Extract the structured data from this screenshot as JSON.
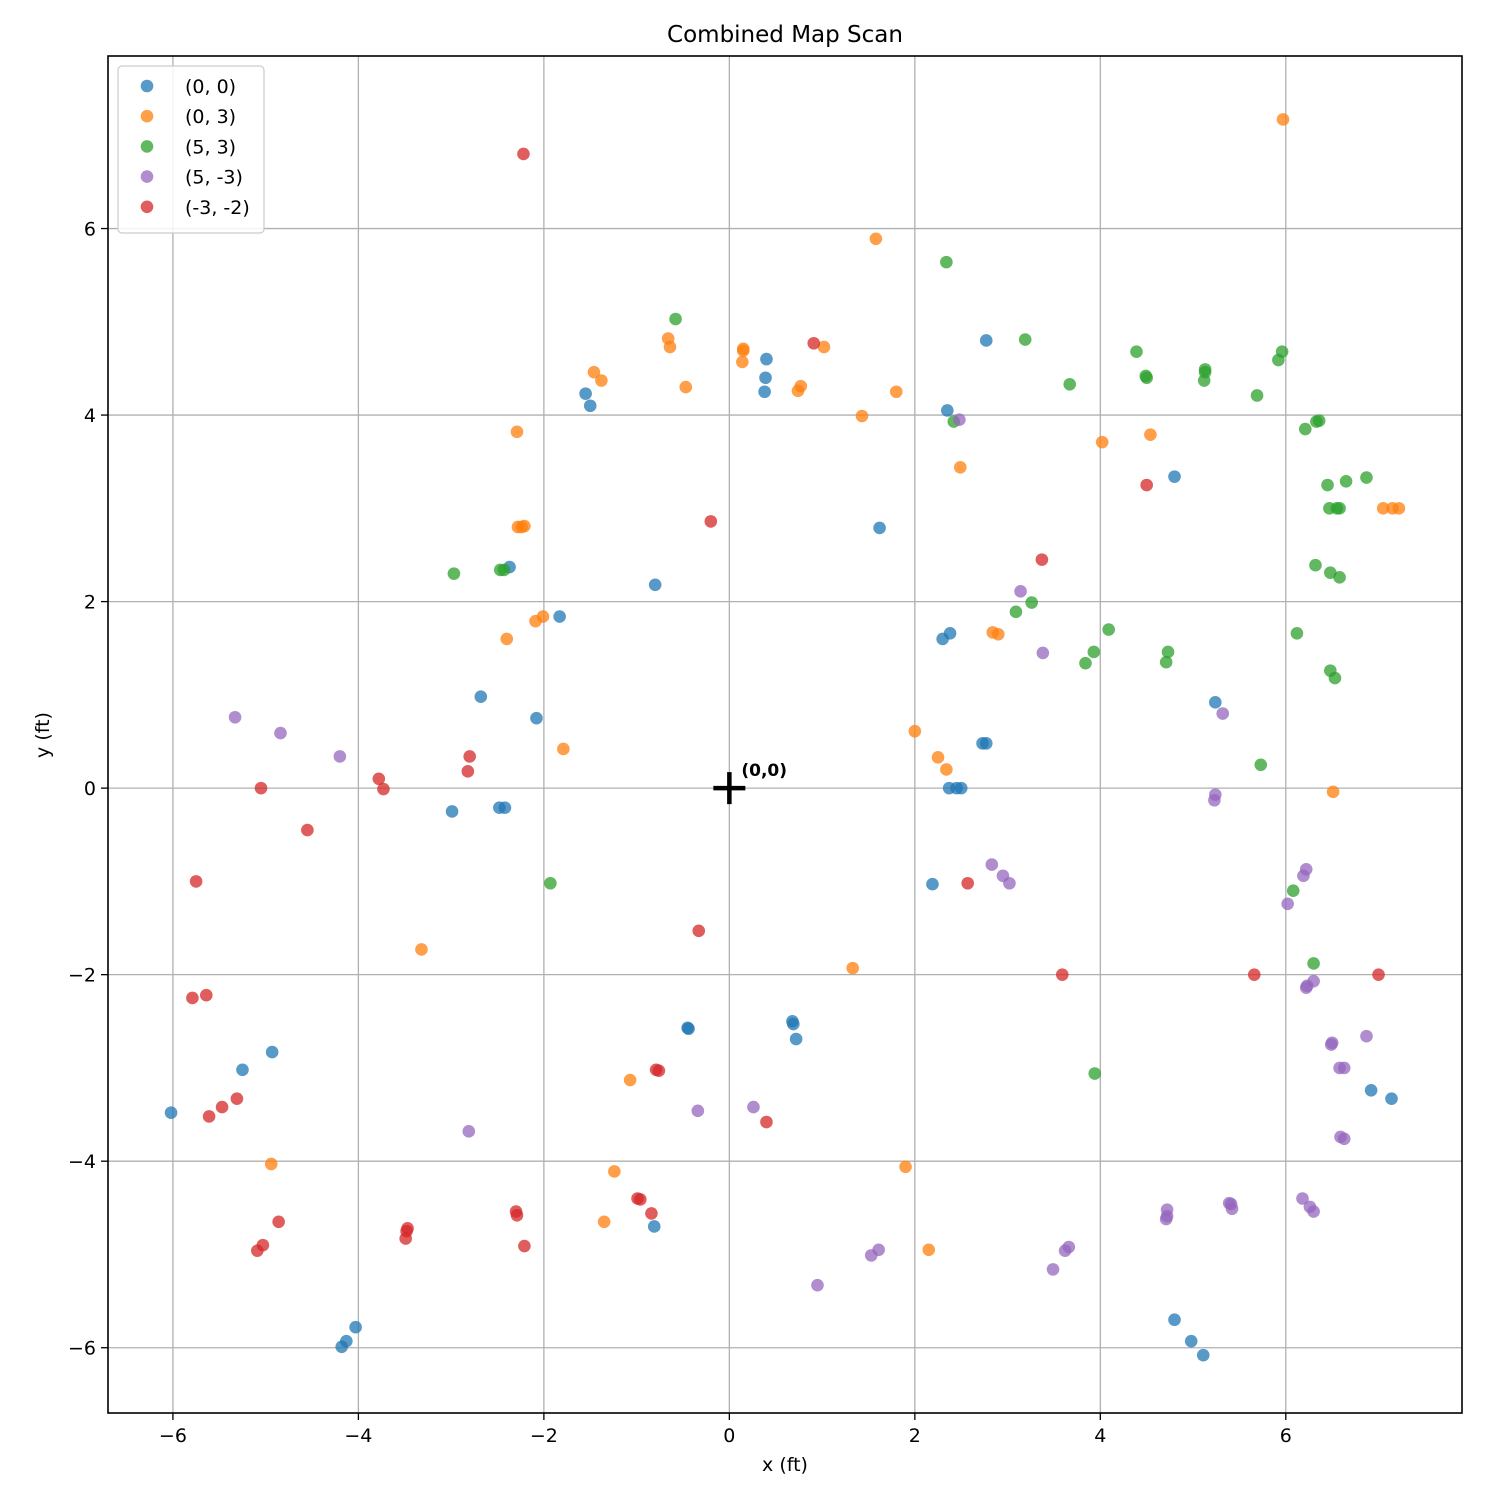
{
  "chart_data": {
    "type": "scatter",
    "title": "Combined Map Scan",
    "xlabel": "x (ft)",
    "ylabel": "y (ft)",
    "xlim": [
      -6.7,
      7.9
    ],
    "ylim": [
      -6.7,
      7.85
    ],
    "xticks": [
      -6,
      -4,
      -2,
      0,
      2,
      4,
      6
    ],
    "yticks": [
      -6,
      -4,
      -2,
      0,
      2,
      4,
      6
    ],
    "xtick_labels": [
      "−6",
      "−4",
      "−2",
      "0",
      "2",
      "4",
      "6"
    ],
    "ytick_labels": [
      "−6",
      "−4",
      "−2",
      "0",
      "2",
      "4",
      "6"
    ],
    "grid": true,
    "legend_position": "upper-left",
    "origin_marker": {
      "x": 0,
      "y": 0,
      "label": "(0,0)"
    },
    "series": [
      {
        "name": "(0, 0)",
        "color": "#1f77b4",
        "points": [
          [
            -1.55,
            4.23
          ],
          [
            -1.5,
            4.1
          ],
          [
            0.4,
            4.6
          ],
          [
            0.39,
            4.4
          ],
          [
            0.38,
            4.25
          ],
          [
            2.35,
            4.05
          ],
          [
            2.77,
            4.8
          ],
          [
            4.8,
            3.34
          ],
          [
            1.62,
            2.79
          ],
          [
            -0.8,
            2.18
          ],
          [
            -2.37,
            2.37
          ],
          [
            -1.83,
            1.84
          ],
          [
            -2.68,
            0.98
          ],
          [
            -2.08,
            0.75
          ],
          [
            2.38,
            1.66
          ],
          [
            2.3,
            1.6
          ],
          [
            2.73,
            0.48
          ],
          [
            2.77,
            0.48
          ],
          [
            5.24,
            0.92
          ],
          [
            -2.99,
            -0.25
          ],
          [
            -2.48,
            -0.21
          ],
          [
            -2.42,
            -0.21
          ],
          [
            2.37,
            0.0
          ],
          [
            2.45,
            0.0
          ],
          [
            2.5,
            0.0
          ],
          [
            2.19,
            -1.03
          ],
          [
            -0.45,
            -2.57
          ],
          [
            -0.44,
            -2.58
          ],
          [
            0.68,
            -2.5
          ],
          [
            0.69,
            -2.53
          ],
          [
            0.72,
            -2.69
          ],
          [
            -4.93,
            -2.83
          ],
          [
            -5.25,
            -3.02
          ],
          [
            -6.02,
            -3.48
          ],
          [
            6.92,
            -3.24
          ],
          [
            7.14,
            -3.33
          ],
          [
            -0.81,
            -4.7
          ],
          [
            -4.03,
            -5.78
          ],
          [
            -4.13,
            -5.93
          ],
          [
            -4.18,
            -5.99
          ],
          [
            4.8,
            -5.7
          ],
          [
            4.98,
            -5.93
          ],
          [
            5.11,
            -6.08
          ]
        ]
      },
      {
        "name": "(0, 3)",
        "color": "#ff7f0e",
        "points": [
          [
            5.97,
            7.17
          ],
          [
            1.58,
            5.89
          ],
          [
            -0.66,
            4.82
          ],
          [
            -0.64,
            4.73
          ],
          [
            0.15,
            4.71
          ],
          [
            0.15,
            4.69
          ],
          [
            0.14,
            4.57
          ],
          [
            1.02,
            4.73
          ],
          [
            -1.46,
            4.46
          ],
          [
            -1.38,
            4.37
          ],
          [
            -0.47,
            4.3
          ],
          [
            0.77,
            4.31
          ],
          [
            0.74,
            4.26
          ],
          [
            1.8,
            4.25
          ],
          [
            1.43,
            3.99
          ],
          [
            4.02,
            3.71
          ],
          [
            4.54,
            3.79
          ],
          [
            2.49,
            3.44
          ],
          [
            -2.29,
            3.82
          ],
          [
            -2.28,
            2.8
          ],
          [
            -2.24,
            2.8
          ],
          [
            -2.21,
            2.81
          ],
          [
            7.05,
            3.0
          ],
          [
            7.15,
            3.0
          ],
          [
            7.22,
            3.0
          ],
          [
            -2.01,
            1.84
          ],
          [
            -2.09,
            1.79
          ],
          [
            -2.4,
            1.6
          ],
          [
            2.84,
            1.67
          ],
          [
            2.9,
            1.65
          ],
          [
            -1.79,
            0.42
          ],
          [
            2.0,
            0.61
          ],
          [
            2.25,
            0.33
          ],
          [
            2.34,
            0.2
          ],
          [
            6.51,
            -0.04
          ],
          [
            -3.32,
            -1.73
          ],
          [
            1.33,
            -1.93
          ],
          [
            -1.07,
            -3.13
          ],
          [
            1.9,
            -4.06
          ],
          [
            -4.94,
            -4.03
          ],
          [
            -1.24,
            -4.11
          ],
          [
            -1.35,
            -4.65
          ],
          [
            2.15,
            -4.95
          ]
        ]
      },
      {
        "name": "(5, 3)",
        "color": "#2ca02c",
        "points": [
          [
            2.34,
            5.64
          ],
          [
            -0.58,
            5.03
          ],
          [
            3.19,
            4.81
          ],
          [
            4.39,
            4.68
          ],
          [
            5.96,
            4.68
          ],
          [
            5.92,
            4.59
          ],
          [
            4.49,
            4.42
          ],
          [
            4.5,
            4.4
          ],
          [
            5.13,
            4.49
          ],
          [
            5.13,
            4.46
          ],
          [
            5.12,
            4.37
          ],
          [
            3.67,
            4.33
          ],
          [
            5.69,
            4.21
          ],
          [
            6.33,
            3.93
          ],
          [
            6.36,
            3.94
          ],
          [
            6.21,
            3.85
          ],
          [
            2.42,
            3.93
          ],
          [
            6.87,
            3.33
          ],
          [
            6.65,
            3.29
          ],
          [
            6.45,
            3.25
          ],
          [
            6.47,
            3.0
          ],
          [
            6.55,
            3.0
          ],
          [
            6.58,
            3.0
          ],
          [
            -2.97,
            2.3
          ],
          [
            -2.47,
            2.34
          ],
          [
            -2.43,
            2.34
          ],
          [
            6.32,
            2.39
          ],
          [
            6.48,
            2.31
          ],
          [
            6.58,
            2.26
          ],
          [
            3.26,
            1.99
          ],
          [
            3.09,
            1.89
          ],
          [
            4.09,
            1.7
          ],
          [
            6.12,
            1.66
          ],
          [
            4.73,
            1.46
          ],
          [
            3.93,
            1.46
          ],
          [
            3.84,
            1.34
          ],
          [
            4.71,
            1.35
          ],
          [
            6.48,
            1.26
          ],
          [
            6.53,
            1.18
          ],
          [
            5.73,
            0.25
          ],
          [
            -1.93,
            -1.02
          ],
          [
            6.08,
            -1.1
          ],
          [
            6.3,
            -1.88
          ],
          [
            3.94,
            -3.06
          ]
        ]
      },
      {
        "name": "(5, -3)",
        "color": "#9467bd",
        "points": [
          [
            2.48,
            3.95
          ],
          [
            3.14,
            2.11
          ],
          [
            3.38,
            1.45
          ],
          [
            -5.33,
            0.76
          ],
          [
            -4.84,
            0.59
          ],
          [
            -4.2,
            0.34
          ],
          [
            5.32,
            0.8
          ],
          [
            5.24,
            -0.07
          ],
          [
            5.23,
            -0.13
          ],
          [
            2.83,
            -0.82
          ],
          [
            2.95,
            -0.94
          ],
          [
            3.02,
            -1.02
          ],
          [
            6.22,
            -0.87
          ],
          [
            6.19,
            -0.94
          ],
          [
            6.02,
            -1.24
          ],
          [
            6.3,
            -2.07
          ],
          [
            6.23,
            -2.12
          ],
          [
            6.22,
            -2.14
          ],
          [
            6.87,
            -2.66
          ],
          [
            6.5,
            -2.73
          ],
          [
            6.49,
            -2.75
          ],
          [
            6.58,
            -3.0
          ],
          [
            6.63,
            -3.0
          ],
          [
            6.59,
            -3.74
          ],
          [
            6.63,
            -3.76
          ],
          [
            -0.34,
            -3.46
          ],
          [
            0.26,
            -3.42
          ],
          [
            -2.81,
            -3.68
          ],
          [
            4.72,
            -4.52
          ],
          [
            4.72,
            -4.59
          ],
          [
            4.71,
            -4.62
          ],
          [
            5.41,
            -4.46
          ],
          [
            5.42,
            -4.51
          ],
          [
            6.18,
            -4.4
          ],
          [
            6.26,
            -4.49
          ],
          [
            6.3,
            -4.54
          ],
          [
            5.39,
            -4.45
          ],
          [
            3.66,
            -4.92
          ],
          [
            3.62,
            -4.96
          ],
          [
            1.61,
            -4.95
          ],
          [
            1.53,
            -5.01
          ],
          [
            3.49,
            -5.16
          ],
          [
            0.95,
            -5.33
          ]
        ]
      },
      {
        "name": "(-3, -2)",
        "color": "#d62728",
        "points": [
          [
            -2.22,
            6.8
          ],
          [
            0.91,
            4.77
          ],
          [
            -0.2,
            2.86
          ],
          [
            4.5,
            3.25
          ],
          [
            3.37,
            2.45
          ],
          [
            -2.8,
            0.34
          ],
          [
            -2.82,
            0.18
          ],
          [
            -3.78,
            0.1
          ],
          [
            -3.73,
            -0.01
          ],
          [
            -5.05,
            0.0
          ],
          [
            -4.55,
            -0.45
          ],
          [
            -5.75,
            -1.0
          ],
          [
            -0.33,
            -1.53
          ],
          [
            2.57,
            -1.02
          ],
          [
            3.59,
            -2.0
          ],
          [
            5.66,
            -2.0
          ],
          [
            7.0,
            -2.0
          ],
          [
            -5.79,
            -2.25
          ],
          [
            -5.64,
            -2.22
          ],
          [
            -0.79,
            -3.02
          ],
          [
            -0.76,
            -3.03
          ],
          [
            -5.31,
            -3.33
          ],
          [
            -5.47,
            -3.42
          ],
          [
            -5.61,
            -3.52
          ],
          [
            0.4,
            -3.58
          ],
          [
            -0.99,
            -4.4
          ],
          [
            -0.96,
            -4.41
          ],
          [
            -0.84,
            -4.56
          ],
          [
            -2.3,
            -4.54
          ],
          [
            -2.29,
            -4.58
          ],
          [
            -3.47,
            -4.72
          ],
          [
            -3.48,
            -4.75
          ],
          [
            -3.49,
            -4.83
          ],
          [
            -4.86,
            -4.65
          ],
          [
            -5.03,
            -4.9
          ],
          [
            -5.09,
            -4.96
          ],
          [
            -2.21,
            -4.91
          ]
        ]
      }
    ]
  }
}
